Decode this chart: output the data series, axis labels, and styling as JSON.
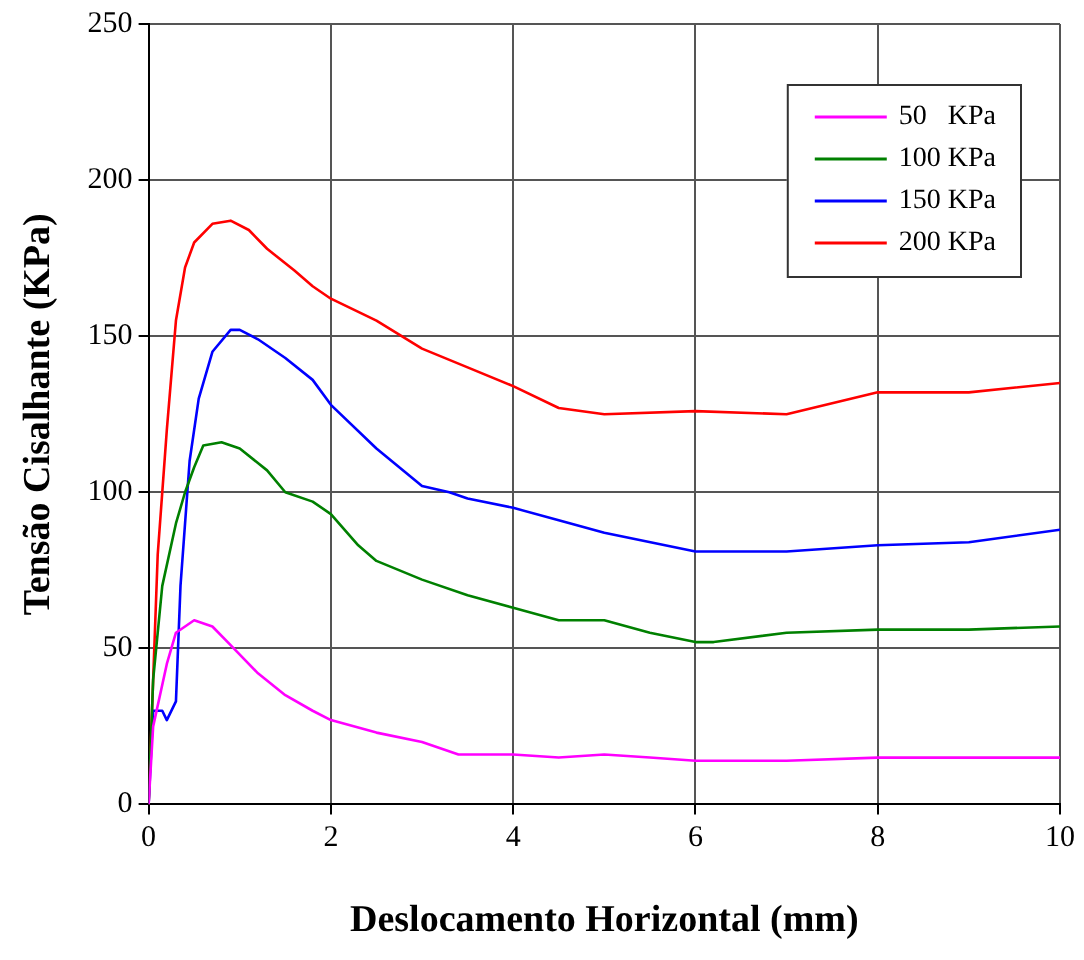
{
  "chart_data": {
    "type": "line",
    "xlabel": "Deslocamento Horizontal (mm)",
    "ylabel": "Tensão Cisalhante (KPa)",
    "xlim": [
      0,
      10
    ],
    "xticks": [
      0,
      2,
      4,
      6,
      8,
      10
    ],
    "ylim": [
      0,
      250
    ],
    "yticks": [
      0,
      50,
      100,
      150,
      200,
      250
    ],
    "grid": true,
    "legend": "top right",
    "marker": "none",
    "line_style": "solid",
    "series": [
      {
        "name": "50   KPa",
        "color": "#ff00ff",
        "x": [
          0,
          0.05,
          0.2,
          0.3,
          0.5,
          0.7,
          0.9,
          1.2,
          1.5,
          1.8,
          2,
          2.5,
          3,
          3.4,
          4,
          4.5,
          5,
          5.5,
          6,
          7,
          8,
          10
        ],
        "values": [
          0,
          25,
          45,
          55,
          59,
          57,
          51,
          42,
          35,
          30,
          27,
          23,
          20,
          16,
          16,
          15,
          16,
          15,
          14,
          14,
          15,
          15
        ]
      },
      {
        "name": "100 KPa",
        "color": "#008000",
        "x": [
          0,
          0.05,
          0.15,
          0.3,
          0.4,
          0.5,
          0.6,
          0.8,
          1,
          1.3,
          1.5,
          1.8,
          2,
          2.3,
          2.5,
          3,
          3.5,
          4,
          4.5,
          5,
          5.5,
          6,
          6.2,
          7,
          8,
          9,
          10
        ],
        "values": [
          0,
          40,
          70,
          90,
          100,
          108,
          115,
          116,
          114,
          107,
          100,
          97,
          93,
          83,
          78,
          72,
          67,
          63,
          59,
          59,
          55,
          52,
          52,
          55,
          56,
          56,
          57
        ]
      },
      {
        "name": "150 KPa",
        "color": "#0000ff",
        "x": [
          0,
          0.05,
          0.15,
          0.2,
          0.3,
          0.35,
          0.45,
          0.55,
          0.7,
          0.9,
          1,
          1.2,
          1.5,
          1.8,
          2,
          2.5,
          3,
          3.3,
          3.5,
          4,
          4.5,
          5,
          6,
          7,
          8,
          9,
          10
        ],
        "values": [
          0,
          30,
          30,
          27,
          33,
          70,
          110,
          130,
          145,
          152,
          152,
          149,
          143,
          136,
          128,
          114,
          102,
          100,
          98,
          95,
          91,
          87,
          81,
          81,
          83,
          84,
          88
        ]
      },
      {
        "name": "200 KPa",
        "color": "#ff0000",
        "x": [
          0,
          0.05,
          0.1,
          0.2,
          0.3,
          0.4,
          0.5,
          0.7,
          0.9,
          1.1,
          1.3,
          1.6,
          1.8,
          2,
          2.5,
          3,
          3.5,
          4,
          4.5,
          5,
          6,
          7,
          8,
          9,
          10
        ],
        "values": [
          0,
          40,
          80,
          120,
          155,
          172,
          180,
          186,
          187,
          184,
          178,
          171,
          166,
          162,
          155,
          146,
          140,
          134,
          127,
          125,
          126,
          125,
          132,
          132,
          135
        ]
      }
    ]
  }
}
